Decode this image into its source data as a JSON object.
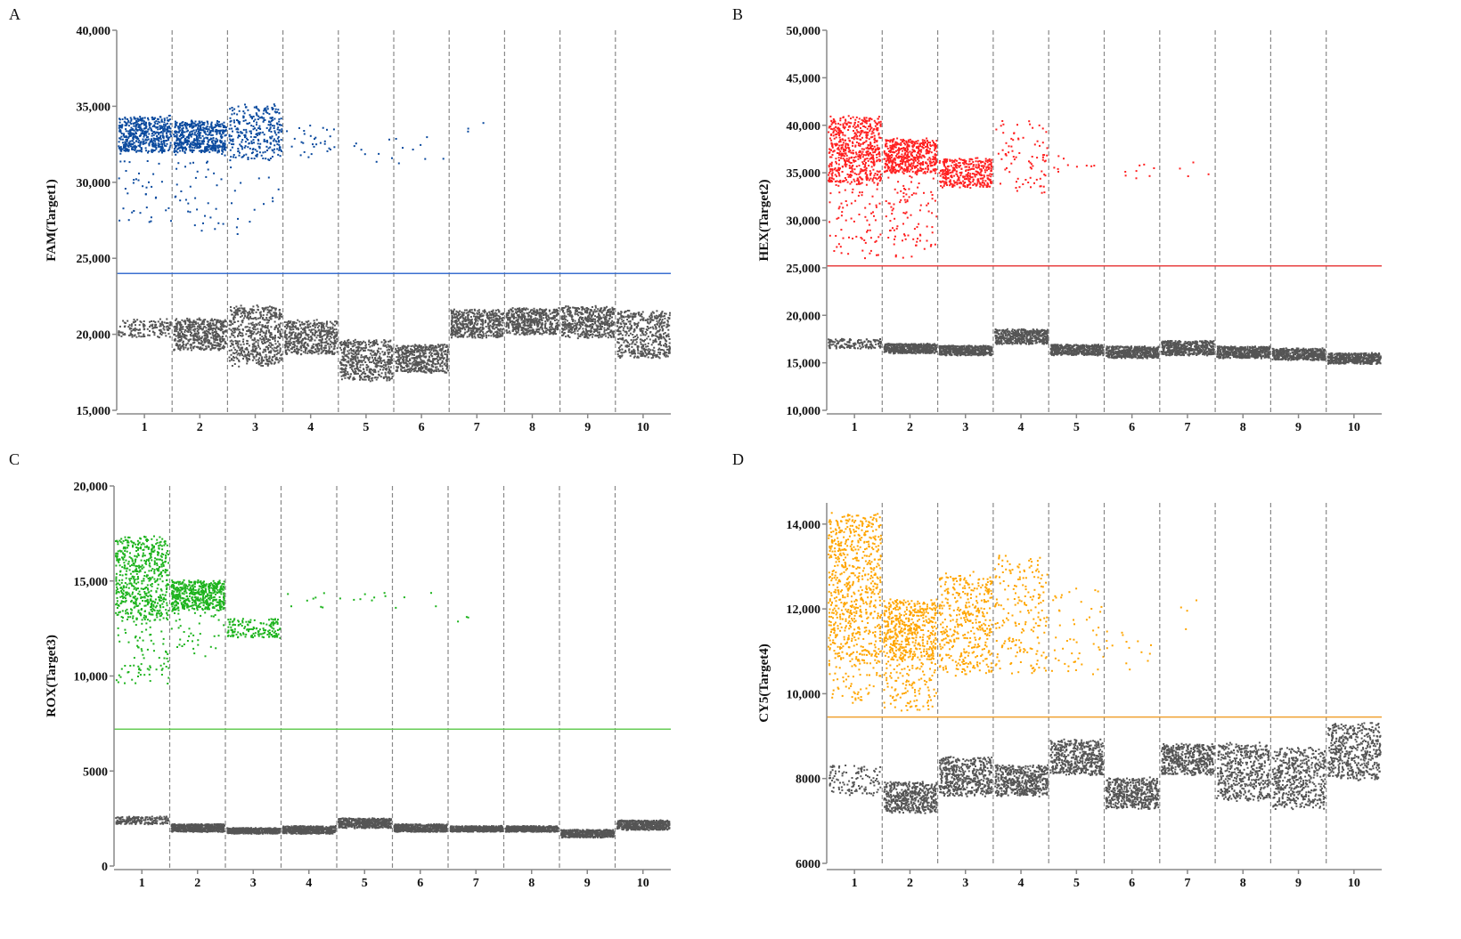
{
  "chart_data": [
    {
      "type": "scatter",
      "panel_label": "A",
      "ylabel": "FAM(Target1)",
      "xlabel": "",
      "ylim": [
        15000,
        40000
      ],
      "yticks": [
        {
          "v": 15000,
          "label": "15,000"
        },
        {
          "v": 20000,
          "label": "20,000"
        },
        {
          "v": 25000,
          "label": "25,000"
        },
        {
          "v": 30000,
          "label": "30,000"
        },
        {
          "v": 35000,
          "label": "35,000"
        },
        {
          "v": 40000,
          "label": "40,000"
        }
      ],
      "wells": [
        "1",
        "2",
        "3",
        "4",
        "5",
        "6",
        "7",
        "8",
        "9",
        "10"
      ],
      "threshold": 24000,
      "positive_color": "#0b4a9e",
      "threshold_color": "#3a6fd0",
      "negative_color": "#555555",
      "positive_clusters": [
        {
          "well": 1,
          "lo": 32000,
          "hi": 34300,
          "n": 500
        },
        {
          "well": 1,
          "lo": 27000,
          "hi": 32000,
          "n": 40
        },
        {
          "well": 2,
          "lo": 32000,
          "hi": 34000,
          "n": 500
        },
        {
          "well": 2,
          "lo": 26500,
          "hi": 32000,
          "n": 40
        },
        {
          "well": 3,
          "lo": 31500,
          "hi": 35000,
          "n": 300
        },
        {
          "well": 3,
          "lo": 26500,
          "hi": 31500,
          "n": 15
        },
        {
          "well": 4,
          "lo": 31500,
          "hi": 33700,
          "n": 30
        },
        {
          "well": 5,
          "lo": 31000,
          "hi": 33000,
          "n": 8
        },
        {
          "well": 6,
          "lo": 31000,
          "hi": 33000,
          "n": 8
        },
        {
          "well": 7,
          "lo": 33000,
          "hi": 34000,
          "n": 3
        }
      ],
      "negative_clusters": [
        {
          "well": 1,
          "lo": 19800,
          "hi": 21000,
          "n": 150
        },
        {
          "well": 2,
          "lo": 19000,
          "hi": 21000,
          "n": 500
        },
        {
          "well": 3,
          "lo": 18000,
          "hi": 21800,
          "n": 600
        },
        {
          "well": 4,
          "lo": 18700,
          "hi": 20900,
          "n": 500
        },
        {
          "well": 5,
          "lo": 17000,
          "hi": 19600,
          "n": 500
        },
        {
          "well": 6,
          "lo": 17500,
          "hi": 19300,
          "n": 500
        },
        {
          "well": 7,
          "lo": 19800,
          "hi": 21600,
          "n": 500
        },
        {
          "well": 8,
          "lo": 20000,
          "hi": 21700,
          "n": 500
        },
        {
          "well": 9,
          "lo": 19800,
          "hi": 21800,
          "n": 500
        },
        {
          "well": 10,
          "lo": 18500,
          "hi": 21500,
          "n": 500
        }
      ]
    },
    {
      "type": "scatter",
      "panel_label": "B",
      "ylabel": "HEX(Target2)",
      "xlabel": "",
      "ylim": [
        10000,
        50000
      ],
      "yticks": [
        {
          "v": 10000,
          "label": "10,000"
        },
        {
          "v": 15000,
          "label": "15,000"
        },
        {
          "v": 20000,
          "label": "20,000"
        },
        {
          "v": 25000,
          "label": "25,000"
        },
        {
          "v": 30000,
          "label": "30,000"
        },
        {
          "v": 35000,
          "label": "35,000"
        },
        {
          "v": 40000,
          "label": "40,000"
        },
        {
          "v": 45000,
          "label": "45,000"
        },
        {
          "v": 50000,
          "label": "50,000"
        }
      ],
      "wells": [
        "1",
        "2",
        "3",
        "4",
        "5",
        "6",
        "7",
        "8",
        "9",
        "10"
      ],
      "threshold": 25200,
      "positive_color": "#ff2020",
      "threshold_color": "#e84040",
      "negative_color": "#555555",
      "positive_clusters": [
        {
          "well": 1,
          "lo": 34000,
          "hi": 40800,
          "n": 600
        },
        {
          "well": 1,
          "lo": 26000,
          "hi": 34000,
          "n": 80
        },
        {
          "well": 2,
          "lo": 35000,
          "hi": 38500,
          "n": 500
        },
        {
          "well": 2,
          "lo": 26000,
          "hi": 35000,
          "n": 100
        },
        {
          "well": 3,
          "lo": 33500,
          "hi": 36500,
          "n": 350
        },
        {
          "well": 4,
          "lo": 33000,
          "hi": 40500,
          "n": 80
        },
        {
          "well": 5,
          "lo": 35000,
          "hi": 37000,
          "n": 10
        },
        {
          "well": 6,
          "lo": 34500,
          "hi": 37000,
          "n": 8
        },
        {
          "well": 7,
          "lo": 33500,
          "hi": 36500,
          "n": 4
        }
      ],
      "negative_clusters": [
        {
          "well": 1,
          "lo": 16500,
          "hi": 17500,
          "n": 150
        },
        {
          "well": 2,
          "lo": 16000,
          "hi": 17000,
          "n": 500
        },
        {
          "well": 3,
          "lo": 15800,
          "hi": 16800,
          "n": 500
        },
        {
          "well": 4,
          "lo": 17000,
          "hi": 18500,
          "n": 500
        },
        {
          "well": 5,
          "lo": 15800,
          "hi": 16900,
          "n": 500
        },
        {
          "well": 6,
          "lo": 15500,
          "hi": 16700,
          "n": 500
        },
        {
          "well": 7,
          "lo": 15800,
          "hi": 17300,
          "n": 500
        },
        {
          "well": 8,
          "lo": 15500,
          "hi": 16700,
          "n": 500
        },
        {
          "well": 9,
          "lo": 15300,
          "hi": 16500,
          "n": 500
        },
        {
          "well": 10,
          "lo": 14900,
          "hi": 16000,
          "n": 500
        }
      ]
    },
    {
      "type": "scatter",
      "panel_label": "C",
      "ylabel": "ROX(Target3)",
      "xlabel": "",
      "ylim": [
        0,
        20000
      ],
      "yticks": [
        {
          "v": 0,
          "label": "0"
        },
        {
          "v": 5000,
          "label": "5000"
        },
        {
          "v": 10000,
          "label": "10,000"
        },
        {
          "v": 15000,
          "label": "15,000"
        },
        {
          "v": 20000,
          "label": "20,000"
        }
      ],
      "wells": [
        "1",
        "2",
        "3",
        "4",
        "5",
        "6",
        "7",
        "8",
        "9",
        "10"
      ],
      "threshold": 7200,
      "positive_color": "#1db31d",
      "threshold_color": "#66cc55",
      "negative_color": "#555555",
      "positive_clusters": [
        {
          "well": 1,
          "lo": 13000,
          "hi": 17300,
          "n": 600
        },
        {
          "well": 1,
          "lo": 9500,
          "hi": 13000,
          "n": 80
        },
        {
          "well": 2,
          "lo": 13500,
          "hi": 15000,
          "n": 500
        },
        {
          "well": 2,
          "lo": 11000,
          "hi": 13500,
          "n": 40
        },
        {
          "well": 3,
          "lo": 12000,
          "hi": 13000,
          "n": 150
        },
        {
          "well": 4,
          "lo": 13500,
          "hi": 14500,
          "n": 8
        },
        {
          "well": 5,
          "lo": 13800,
          "hi": 14500,
          "n": 8
        },
        {
          "well": 6,
          "lo": 13500,
          "hi": 14500,
          "n": 4
        },
        {
          "well": 7,
          "lo": 12800,
          "hi": 13300,
          "n": 3
        }
      ],
      "negative_clusters": [
        {
          "well": 1,
          "lo": 2200,
          "hi": 2600,
          "n": 200
        },
        {
          "well": 2,
          "lo": 1800,
          "hi": 2200,
          "n": 500
        },
        {
          "well": 3,
          "lo": 1700,
          "hi": 2000,
          "n": 500
        },
        {
          "well": 4,
          "lo": 1700,
          "hi": 2100,
          "n": 500
        },
        {
          "well": 5,
          "lo": 2000,
          "hi": 2500,
          "n": 500
        },
        {
          "well": 6,
          "lo": 1800,
          "hi": 2200,
          "n": 500
        },
        {
          "well": 7,
          "lo": 1800,
          "hi": 2100,
          "n": 500
        },
        {
          "well": 8,
          "lo": 1800,
          "hi": 2100,
          "n": 500
        },
        {
          "well": 9,
          "lo": 1500,
          "hi": 1900,
          "n": 500
        },
        {
          "well": 10,
          "lo": 1900,
          "hi": 2400,
          "n": 500
        }
      ]
    },
    {
      "type": "scatter",
      "panel_label": "D",
      "ylabel": "CY5(Target4)",
      "xlabel": "",
      "ylim": [
        6000,
        14500
      ],
      "yticks": [
        {
          "v": 6000,
          "label": "6000"
        },
        {
          "v": 8000,
          "label": "8000"
        },
        {
          "v": 10000,
          "label": "10,000"
        },
        {
          "v": 12000,
          "label": "12,000"
        },
        {
          "v": 14000,
          "label": "14,000"
        }
      ],
      "wells": [
        "1",
        "2",
        "3",
        "4",
        "5",
        "6",
        "7",
        "8",
        "9",
        "10"
      ],
      "threshold": 9450,
      "positive_color": "#ffa500",
      "threshold_color": "#f0a030",
      "negative_color": "#555555",
      "positive_clusters": [
        {
          "well": 1,
          "lo": 10800,
          "hi": 14200,
          "n": 700
        },
        {
          "well": 1,
          "lo": 9800,
          "hi": 10800,
          "n": 60
        },
        {
          "well": 2,
          "lo": 10800,
          "hi": 12200,
          "n": 500
        },
        {
          "well": 2,
          "lo": 9600,
          "hi": 10800,
          "n": 120
        },
        {
          "well": 3,
          "lo": 10500,
          "hi": 12800,
          "n": 400
        },
        {
          "well": 4,
          "lo": 10500,
          "hi": 13200,
          "n": 200
        },
        {
          "well": 5,
          "lo": 10500,
          "hi": 12500,
          "n": 50
        },
        {
          "well": 6,
          "lo": 10500,
          "hi": 11500,
          "n": 15
        },
        {
          "well": 7,
          "lo": 11500,
          "hi": 12300,
          "n": 4
        }
      ],
      "negative_clusters": [
        {
          "well": 1,
          "lo": 7600,
          "hi": 8300,
          "n": 120
        },
        {
          "well": 2,
          "lo": 7200,
          "hi": 7900,
          "n": 500
        },
        {
          "well": 3,
          "lo": 7600,
          "hi": 8500,
          "n": 500
        },
        {
          "well": 4,
          "lo": 7600,
          "hi": 8300,
          "n": 500
        },
        {
          "well": 5,
          "lo": 8100,
          "hi": 8900,
          "n": 500
        },
        {
          "well": 6,
          "lo": 7300,
          "hi": 8000,
          "n": 500
        },
        {
          "well": 7,
          "lo": 8100,
          "hi": 8800,
          "n": 500
        },
        {
          "well": 8,
          "lo": 7500,
          "hi": 8800,
          "n": 500
        },
        {
          "well": 9,
          "lo": 7300,
          "hi": 8700,
          "n": 500
        },
        {
          "well": 10,
          "lo": 8000,
          "hi": 9300,
          "n": 500
        }
      ]
    }
  ]
}
